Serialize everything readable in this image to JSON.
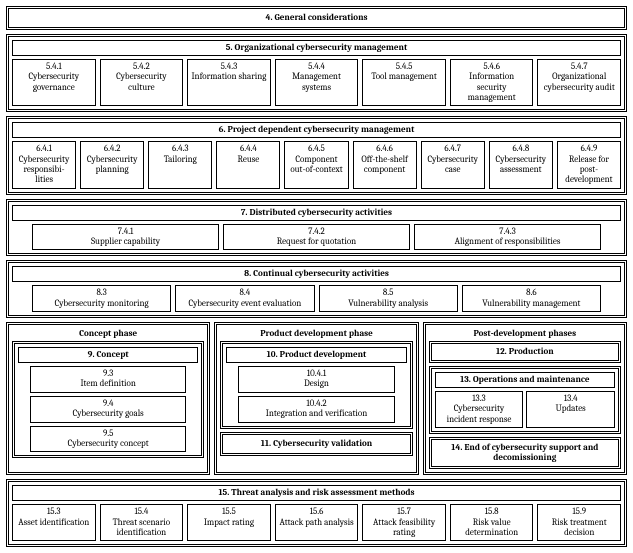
{
  "s4": {
    "title": "4. General considerations"
  },
  "s5": {
    "title": "5. Organizational cybersecurity management",
    "items": [
      {
        "num": "5.4.1",
        "label": "Cybersecurity governance"
      },
      {
        "num": "5.4.2",
        "label": "Cybersecurity culture"
      },
      {
        "num": "5.4.3",
        "label": "Information sharing"
      },
      {
        "num": "5.4.4",
        "label": "Management systems"
      },
      {
        "num": "5.4.5",
        "label": "Tool management"
      },
      {
        "num": "5.4.6",
        "label": "Information security management"
      },
      {
        "num": "5.4.7",
        "label": "Organizational cybersecurity audit"
      }
    ]
  },
  "s6": {
    "title": "6. Project dependent cybersecurity management",
    "items": [
      {
        "num": "6.4.1",
        "label": "Cybersecurity responsibi- lities"
      },
      {
        "num": "6.4.2",
        "label": "Cybersecurity planning"
      },
      {
        "num": "6.4.3",
        "label": "Tailoring"
      },
      {
        "num": "6.4.4",
        "label": "Reuse"
      },
      {
        "num": "6.4.5",
        "label": "Component out-of-context"
      },
      {
        "num": "6.4.6",
        "label": "Off-the-shelf component"
      },
      {
        "num": "6.4.7",
        "label": "Cybersecurity case"
      },
      {
        "num": "6.4.8",
        "label": "Cybersecurity assessment"
      },
      {
        "num": "6.4.9",
        "label": "Release for post- development"
      }
    ]
  },
  "s7": {
    "title": "7. Distributed cybersecurity activities",
    "items": [
      {
        "num": "7.4.1",
        "label": "Supplier capability"
      },
      {
        "num": "7.4.2",
        "label": "Request for quotation"
      },
      {
        "num": "7.4.3",
        "label": "Alignment of responsibilities"
      }
    ]
  },
  "s8": {
    "title": "8. Continual cybersecurity activities",
    "items": [
      {
        "num": "8.3",
        "label": "Cybersecurity monitoring"
      },
      {
        "num": "8.4",
        "label": "Cybersecurity event evaluation"
      },
      {
        "num": "8.5",
        "label": "Vulnerability analysis"
      },
      {
        "num": "8.6",
        "label": "Vulnerability management"
      }
    ]
  },
  "phase_concept": {
    "title": "Concept phase",
    "section": "9. Concept",
    "items": [
      {
        "num": "9.3",
        "label": "Item definition"
      },
      {
        "num": "9.4",
        "label": "Cybersecurity goals"
      },
      {
        "num": "9.5",
        "label": "Cybersecurity concept"
      }
    ]
  },
  "phase_product": {
    "title": "Product development phase",
    "section": "10. Product development",
    "items": [
      {
        "num": "10.4.1",
        "label": "Design"
      },
      {
        "num": "10.4.2",
        "label": "Integration and verification"
      }
    ],
    "validation": "11. Cybersecurity validation"
  },
  "phase_post": {
    "title": "Post-development phases",
    "production": "12. Production",
    "ops_title": "13. Operations and maintenance",
    "ops_items": [
      {
        "num": "13.3",
        "label": "Cybersecurity incident response"
      },
      {
        "num": "13.4",
        "label": "Updates"
      }
    ],
    "end": "14. End of cybersecurity support and decomissioning"
  },
  "s15": {
    "title": "15. Threat analysis and risk assessment methods",
    "items": [
      {
        "num": "15.3",
        "label": "Asset identification"
      },
      {
        "num": "15.4",
        "label": "Threat scenario identification"
      },
      {
        "num": "15.5",
        "label": "Impact rating"
      },
      {
        "num": "15.6",
        "label": "Attack path analysis"
      },
      {
        "num": "15.7",
        "label": "Attack feasibility rating"
      },
      {
        "num": "15.8",
        "label": "Risk value determination"
      },
      {
        "num": "15.9",
        "label": "Risk treatment decision"
      }
    ]
  }
}
